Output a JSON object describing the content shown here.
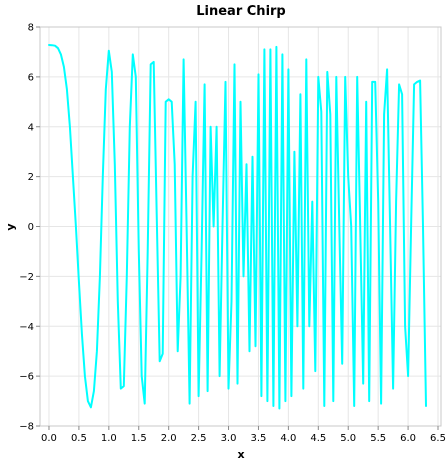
{
  "chart_data": {
    "type": "line",
    "title": "Linear Chirp",
    "xlabel": "x",
    "ylabel": "y",
    "xlim": [
      -0.15,
      6.55
    ],
    "ylim": [
      -8,
      8
    ],
    "x_ticks": [
      "0.0",
      "0.5",
      "1.0",
      "1.5",
      "2.0",
      "2.5",
      "3.0",
      "3.5",
      "4.0",
      "4.5",
      "5.0",
      "5.5",
      "6.0",
      "6.5"
    ],
    "y_ticks": [
      "8",
      "6",
      "4",
      "2",
      "0",
      "−2",
      "−4",
      "−6",
      "−8"
    ],
    "grid": true,
    "legend": "none",
    "series": [
      {
        "color": "#00ffff",
        "x": [
          0.0,
          0.05,
          0.1,
          0.15,
          0.2,
          0.25,
          0.3,
          0.35,
          0.4,
          0.45,
          0.5,
          0.55,
          0.6,
          0.65,
          0.7,
          0.75,
          0.8,
          0.85,
          0.9,
          0.95,
          1.0,
          1.05,
          1.1,
          1.15,
          1.2,
          1.25,
          1.3,
          1.35,
          1.4,
          1.45,
          1.5,
          1.55,
          1.6,
          1.65,
          1.7,
          1.75,
          1.8,
          1.85,
          1.9,
          1.95,
          2.0,
          2.05,
          2.1,
          2.15,
          2.2,
          2.25,
          2.3,
          2.35,
          2.4,
          2.45,
          2.5,
          2.55,
          2.6,
          2.65,
          2.7,
          2.75,
          2.8,
          2.85,
          2.9,
          2.95,
          3.0,
          3.05,
          3.1,
          3.15,
          3.2,
          3.25,
          3.3,
          3.35,
          3.4,
          3.45,
          3.5,
          3.55,
          3.6,
          3.65,
          3.7,
          3.75,
          3.8,
          3.85,
          3.9,
          3.95,
          4.0,
          4.05,
          4.1,
          4.15,
          4.2,
          4.25,
          4.3,
          4.35,
          4.4,
          4.45,
          4.5,
          4.55,
          4.6,
          4.65,
          4.7,
          4.75,
          4.8,
          4.85,
          4.9,
          4.95,
          5.0,
          5.05,
          5.1,
          5.15,
          5.2,
          5.25,
          5.3,
          5.35,
          5.4,
          5.45,
          5.5,
          5.55,
          5.6,
          5.65,
          5.7,
          5.75,
          5.8,
          5.85,
          5.9,
          5.95,
          6.0,
          6.05,
          6.1,
          6.15,
          6.2,
          6.25,
          6.3
        ],
        "y": [
          7.28,
          7.27,
          7.25,
          7.15,
          6.9,
          6.4,
          5.5,
          4.0,
          2.0,
          0.0,
          -2.2,
          -4.3,
          -6.0,
          -7.0,
          -7.25,
          -6.6,
          -5.0,
          -2.0,
          2.0,
          5.5,
          7.05,
          6.2,
          2.5,
          -3.0,
          -6.5,
          -6.4,
          -2.0,
          4.0,
          6.9,
          6.0,
          -1.0,
          -6.0,
          -7.1,
          -1.0,
          6.5,
          6.6,
          0.5,
          -5.4,
          -5.1,
          5.0,
          5.1,
          5.0,
          2.5,
          -5.0,
          -2.0,
          6.7,
          0.0,
          -7.1,
          2.0,
          5.0,
          -6.8,
          -1.0,
          5.7,
          -6.6,
          4.0,
          0.0,
          4.0,
          -6.0,
          0.0,
          5.8,
          -6.5,
          -3.0,
          6.5,
          -6.3,
          5.0,
          -2.0,
          2.5,
          -5.0,
          2.8,
          -4.8,
          6.1,
          -6.8,
          7.1,
          -7.0,
          7.1,
          -7.2,
          7.2,
          -7.3,
          6.9,
          -7.0,
          6.3,
          -6.8,
          3.0,
          -4.0,
          5.3,
          -6.5,
          6.7,
          -4.0,
          1.0,
          -5.8,
          6.0,
          4.6,
          -7.2,
          6.2,
          4.5,
          -7.0,
          6.0,
          0.0,
          -5.5,
          6.0,
          2.0,
          0.0,
          -7.2,
          6.0,
          0.0,
          -6.3,
          5.0,
          -7.0,
          5.8,
          5.8,
          1.0,
          -7.1,
          4.5,
          6.3,
          0.0,
          -6.5,
          1.0,
          5.7,
          5.3,
          -4.0,
          -6.0,
          0.0,
          5.7,
          5.8,
          5.85,
          0.0,
          -7.2
        ]
      }
    ]
  }
}
